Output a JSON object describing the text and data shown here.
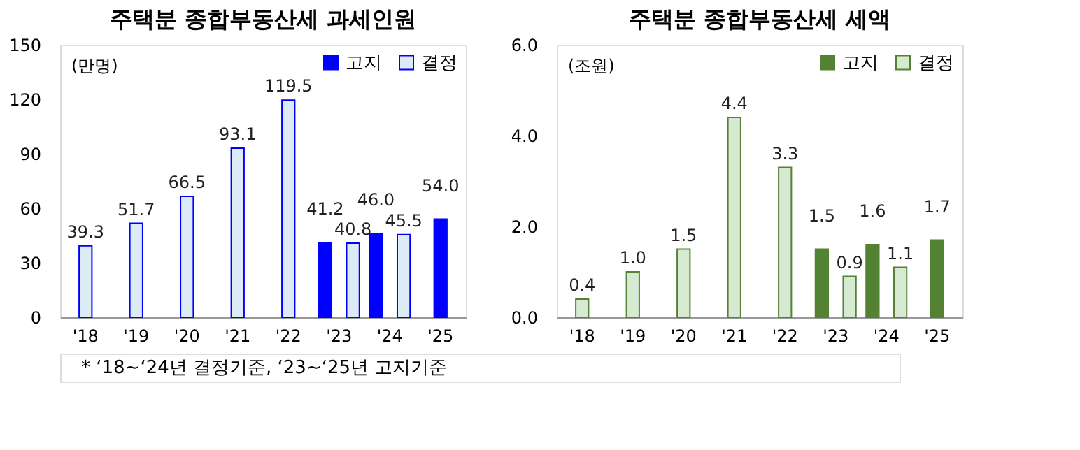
{
  "chart_data": [
    {
      "type": "bar",
      "title": "주택분 종합부동산세 과세인원",
      "ylabel": "(만명)",
      "categories": [
        "'18",
        "'19",
        "'20",
        "'21",
        "'22",
        "'23",
        "'24",
        "'25"
      ],
      "series": [
        {
          "name": "고지",
          "color": "#0000ff",
          "values": [
            null,
            null,
            null,
            null,
            null,
            41.2,
            46.0,
            54.0
          ],
          "value_labels": [
            null,
            null,
            null,
            null,
            null,
            "41.2",
            "46.0",
            "54.0"
          ]
        },
        {
          "name": "결정",
          "color": "#ddebf7",
          "values": [
            39.3,
            51.7,
            66.5,
            93.1,
            119.5,
            40.8,
            45.5,
            null
          ],
          "value_labels": [
            "39.3",
            "51.7",
            "66.5",
            "93.1",
            "119.5",
            "40.8",
            "45.5",
            null
          ]
        }
      ],
      "ylim": [
        0,
        150
      ],
      "yticks": [
        0,
        30,
        60,
        90,
        120,
        150
      ],
      "legend": "top right",
      "annotations": [
        "* ‘18~‘24년 결정기준, ‘23~‘25년 고지기준"
      ]
    },
    {
      "type": "bar",
      "title": "주택분 종합부동산세 세액",
      "ylabel": "(조원)",
      "categories": [
        "'18",
        "'19",
        "'20",
        "'21",
        "'22",
        "'23",
        "'24",
        "'25"
      ],
      "series": [
        {
          "name": "고지",
          "color": "#548235",
          "values": [
            null,
            null,
            null,
            null,
            null,
            1.5,
            1.6,
            1.7
          ],
          "value_labels": [
            null,
            null,
            null,
            null,
            null,
            "1.5",
            "1.6",
            "1.7"
          ]
        },
        {
          "name": "결정",
          "color": "#d5ead0",
          "values": [
            0.4,
            1.0,
            1.5,
            4.4,
            3.3,
            0.9,
            1.1,
            null
          ],
          "value_labels": [
            "0.4",
            "1.0",
            "1.5",
            "4.4",
            "3.3",
            "0.9",
            "1.1",
            null
          ]
        }
      ],
      "ylim": [
        0,
        6
      ],
      "yticks": [
        {
          "value": 0,
          "label": "0.0"
        },
        {
          "value": 2,
          "label": "2.0"
        },
        {
          "value": 4,
          "label": "4.0"
        },
        {
          "value": 6,
          "label": "6.0"
        }
      ],
      "legend": "top right"
    }
  ]
}
